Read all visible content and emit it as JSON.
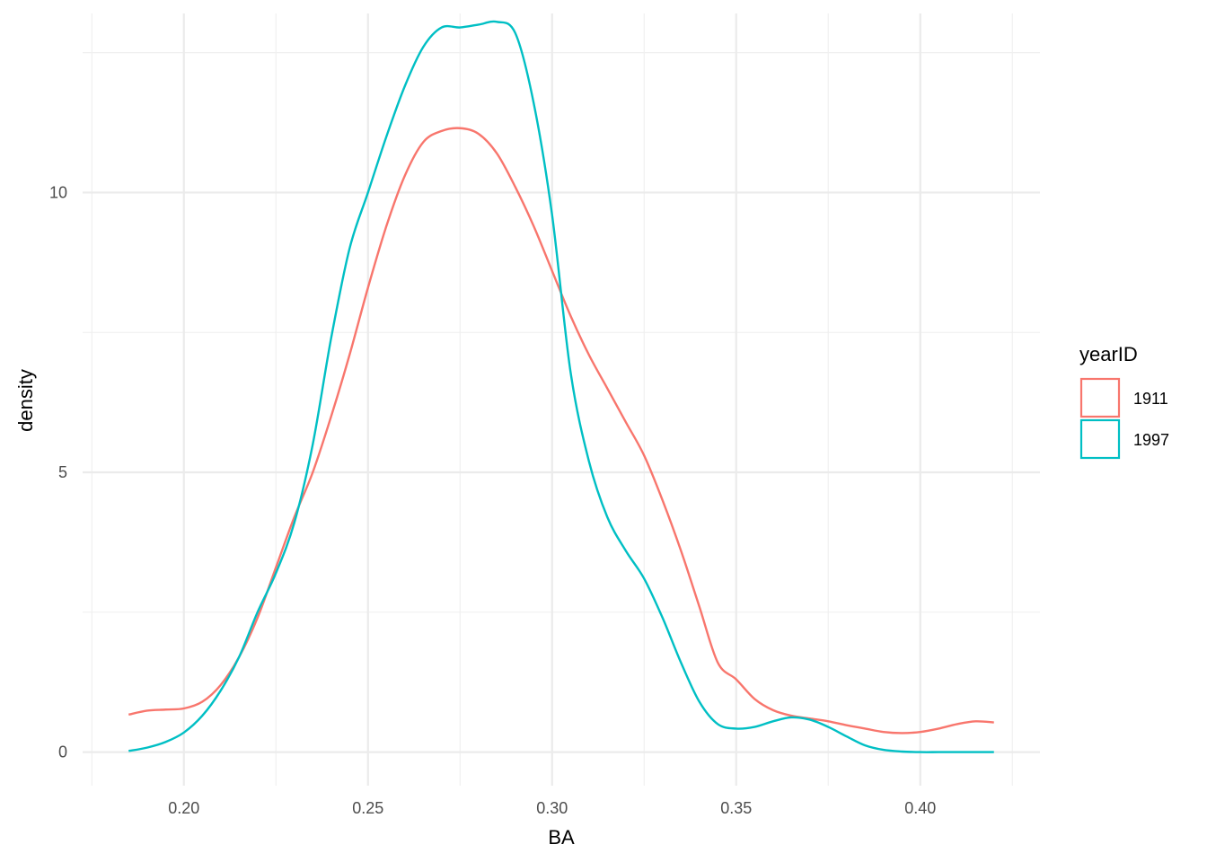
{
  "chart_data": {
    "type": "line",
    "subtype": "density",
    "xlabel": "BA",
    "ylabel": "density",
    "xlim": [
      0.1725,
      0.4325
    ],
    "ylim": [
      -0.6,
      13.2
    ],
    "x_ticks": [
      0.2,
      0.25,
      0.3,
      0.35,
      0.4
    ],
    "x_tick_labels": [
      "0.20",
      "0.25",
      "0.30",
      "0.35",
      "0.40"
    ],
    "y_ticks": [
      0,
      5,
      10
    ],
    "y_tick_labels": [
      "0",
      "5",
      "10"
    ],
    "grid": true,
    "legend": {
      "title": "yearID",
      "placement": "right",
      "entries": [
        {
          "label": "1911",
          "color": "#F8766D"
        },
        {
          "label": "1997",
          "color": "#00BFC4"
        }
      ]
    },
    "series": [
      {
        "name": "1911",
        "color": "#F8766D",
        "x": [
          0.185,
          0.19,
          0.195,
          0.2,
          0.205,
          0.21,
          0.215,
          0.22,
          0.225,
          0.23,
          0.235,
          0.24,
          0.245,
          0.25,
          0.255,
          0.26,
          0.265,
          0.27,
          0.275,
          0.28,
          0.285,
          0.29,
          0.295,
          0.3,
          0.305,
          0.31,
          0.315,
          0.32,
          0.325,
          0.33,
          0.335,
          0.34,
          0.345,
          0.35,
          0.355,
          0.36,
          0.365,
          0.37,
          0.375,
          0.38,
          0.385,
          0.39,
          0.395,
          0.4,
          0.405,
          0.41,
          0.415,
          0.42
        ],
        "y": [
          0.67,
          0.74,
          0.76,
          0.78,
          0.9,
          1.2,
          1.7,
          2.4,
          3.3,
          4.2,
          5.0,
          6.0,
          7.1,
          8.3,
          9.4,
          10.3,
          10.9,
          11.1,
          11.15,
          11.05,
          10.7,
          10.1,
          9.4,
          8.6,
          7.8,
          7.1,
          6.5,
          5.9,
          5.3,
          4.5,
          3.6,
          2.6,
          1.6,
          1.3,
          0.95,
          0.75,
          0.65,
          0.6,
          0.55,
          0.48,
          0.42,
          0.36,
          0.34,
          0.36,
          0.42,
          0.5,
          0.55,
          0.53
        ]
      },
      {
        "name": "1997",
        "color": "#00BFC4",
        "x": [
          0.185,
          0.19,
          0.195,
          0.2,
          0.205,
          0.21,
          0.215,
          0.22,
          0.225,
          0.23,
          0.235,
          0.24,
          0.245,
          0.25,
          0.255,
          0.26,
          0.265,
          0.27,
          0.275,
          0.28,
          0.285,
          0.29,
          0.295,
          0.3,
          0.305,
          0.31,
          0.315,
          0.32,
          0.325,
          0.33,
          0.335,
          0.34,
          0.345,
          0.35,
          0.355,
          0.36,
          0.365,
          0.37,
          0.375,
          0.38,
          0.385,
          0.39,
          0.395,
          0.4,
          0.405,
          0.41,
          0.415,
          0.42
        ],
        "y": [
          0.02,
          0.08,
          0.18,
          0.35,
          0.65,
          1.1,
          1.7,
          2.5,
          3.2,
          4.1,
          5.5,
          7.4,
          9.0,
          10.0,
          11.0,
          11.9,
          12.6,
          12.95,
          12.95,
          13.0,
          13.05,
          12.85,
          11.6,
          9.6,
          6.8,
          5.2,
          4.2,
          3.6,
          3.1,
          2.4,
          1.6,
          0.9,
          0.5,
          0.42,
          0.45,
          0.55,
          0.62,
          0.58,
          0.45,
          0.28,
          0.12,
          0.04,
          0.01,
          0.0,
          0.0,
          0.0,
          0.0,
          0.0
        ]
      }
    ]
  }
}
